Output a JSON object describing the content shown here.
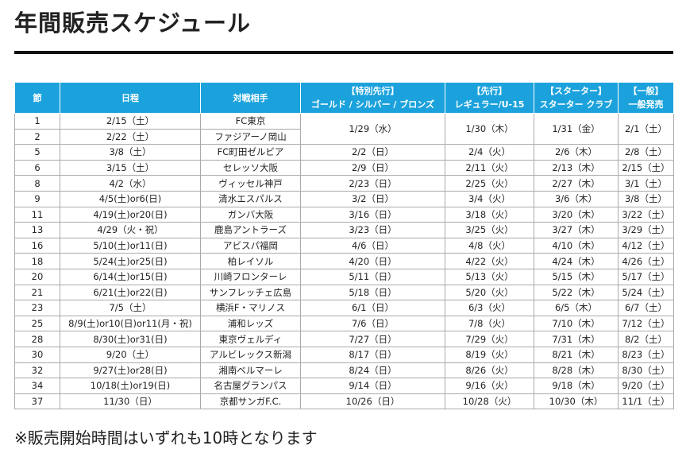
{
  "header": {
    "title": "年間販売スケジュール"
  },
  "table": {
    "columns": [
      [
        "節"
      ],
      [
        "日程"
      ],
      [
        "対戦相手"
      ],
      [
        "【特別先行】",
        "ゴールド / シルバー / ブロンズ"
      ],
      [
        "【先行】",
        "レギュラー/U-15"
      ],
      [
        "【スターター】",
        "スターター クラブ"
      ],
      [
        "【一般】",
        "一般発売"
      ]
    ],
    "rows": [
      [
        "1",
        "2/15（土）",
        "FC東京",
        "1/29（水）",
        "1/30（木）",
        "1/31（金）",
        "2/1（土）"
      ],
      [
        "2",
        "2/22（土）",
        "ファジアーノ岡山"
      ],
      [
        "5",
        "3/8（土）",
        "FC町田ゼルビア",
        "2/2（日）",
        "2/4（火）",
        "2/6（木）",
        "2/8（土）"
      ],
      [
        "6",
        "3/15（土）",
        "セレッソ大阪",
        "2/9（日）",
        "2/11（火）",
        "2/13（木）",
        "2/15（土）"
      ],
      [
        "8",
        "4/2（水）",
        "ヴィッセル神戸",
        "2/23（日）",
        "2/25（火）",
        "2/27（木）",
        "3/1（土）"
      ],
      [
        "9",
        "4/5(土)or6(日)",
        "清水エスパルス",
        "3/2（日）",
        "3/4（火）",
        "3/6（木）",
        "3/8（土）"
      ],
      [
        "11",
        "4/19(土)or20(日)",
        "ガンバ大阪",
        "3/16（日）",
        "3/18（火）",
        "3/20（木）",
        "3/22（土）"
      ],
      [
        "13",
        "4/29（火・祝）",
        "鹿島アントラーズ",
        "3/23（日）",
        "3/25（火）",
        "3/27（木）",
        "3/29（土）"
      ],
      [
        "16",
        "5/10(土)or11(日)",
        "アビスパ福岡",
        "4/6（日）",
        "4/8（火）",
        "4/10（木）",
        "4/12（土）"
      ],
      [
        "18",
        "5/24(土)or25(日)",
        "柏レイソル",
        "4/20（日）",
        "4/22（火）",
        "4/24（木）",
        "4/26（土）"
      ],
      [
        "20",
        "6/14(土)or15(日)",
        "川崎フロンターレ",
        "5/11（日）",
        "5/13（火）",
        "5/15（木）",
        "5/17（土）"
      ],
      [
        "21",
        "6/21(土)or22(日)",
        "サンフレッチェ広島",
        "5/18（日）",
        "5/20（火）",
        "5/22（木）",
        "5/24（土）"
      ],
      [
        "23",
        "7/5（土）",
        "横浜F・マリノス",
        "6/1（日）",
        "6/3（火）",
        "6/5（木）",
        "6/7（土）"
      ],
      [
        "25",
        "8/9(土)or10(日)or11(月・祝)",
        "浦和レッズ",
        "7/6（日）",
        "7/8（火）",
        "7/10（木）",
        "7/12（土）"
      ],
      [
        "28",
        "8/30(土)or31(日)",
        "東京ヴェルディ",
        "7/27（日）",
        "7/29（火）",
        "7/31（木）",
        "8/2（土）"
      ],
      [
        "30",
        "9/20（土）",
        "アルビレックス新潟",
        "8/17（日）",
        "8/19（火）",
        "8/21（木）",
        "8/23（土）"
      ],
      [
        "32",
        "9/27(土)or28(日)",
        "湘南ベルマーレ",
        "8/24（日）",
        "8/26（火）",
        "8/28（木）",
        "8/30（土）"
      ],
      [
        "34",
        "10/18(土)or19(日)",
        "名古屋グランパス",
        "9/14（日）",
        "9/16（火）",
        "9/18（木）",
        "9/20（土）"
      ],
      [
        "37",
        "11/30（日）",
        "京都サンガF.C.",
        "10/26（日）",
        "10/28（火）",
        "10/30（木）",
        "11/1（土）"
      ]
    ]
  },
  "footer": {
    "note": "※販売開始時間はいずれも10時となります"
  }
}
